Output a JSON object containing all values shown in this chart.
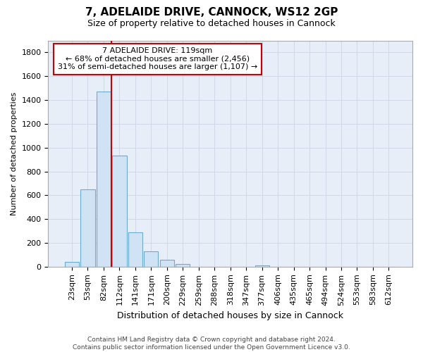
{
  "title1": "7, ADELAIDE DRIVE, CANNOCK, WS12 2GP",
  "title2": "Size of property relative to detached houses in Cannock",
  "xlabel": "Distribution of detached houses by size in Cannock",
  "ylabel": "Number of detached properties",
  "categories": [
    "23sqm",
    "53sqm",
    "82sqm",
    "112sqm",
    "141sqm",
    "171sqm",
    "200sqm",
    "229sqm",
    "259sqm",
    "288sqm",
    "318sqm",
    "347sqm",
    "377sqm",
    "406sqm",
    "435sqm",
    "465sqm",
    "494sqm",
    "524sqm",
    "553sqm",
    "583sqm",
    "612sqm"
  ],
  "values": [
    40,
    650,
    1470,
    935,
    290,
    130,
    60,
    25,
    0,
    0,
    0,
    0,
    10,
    0,
    0,
    0,
    0,
    0,
    0,
    0,
    0
  ],
  "bar_color": "#d0e3f5",
  "bar_edge_color": "#6aaad4",
  "vline_x": 2.5,
  "vline_color": "#cc0000",
  "annotation_text": "7 ADELAIDE DRIVE: 119sqm\n← 68% of detached houses are smaller (2,456)\n31% of semi-detached houses are larger (1,107) →",
  "annotation_box_color": "#ffffff",
  "annotation_box_edge_color": "#cc0000",
  "ylim": [
    0,
    1900
  ],
  "yticks": [
    0,
    200,
    400,
    600,
    800,
    1000,
    1200,
    1400,
    1600,
    1800
  ],
  "footer_line1": "Contains HM Land Registry data © Crown copyright and database right 2024.",
  "footer_line2": "Contains public sector information licensed under the Open Government Licence v3.0.",
  "grid_color": "#d0d8e8",
  "ax_bg_color": "#e8eef8",
  "fig_bg_color": "#ffffff",
  "title1_fontsize": 11,
  "title2_fontsize": 9,
  "xlabel_fontsize": 9,
  "ylabel_fontsize": 8,
  "tick_fontsize": 8,
  "footer_fontsize": 6.5,
  "annotation_fontsize": 8
}
